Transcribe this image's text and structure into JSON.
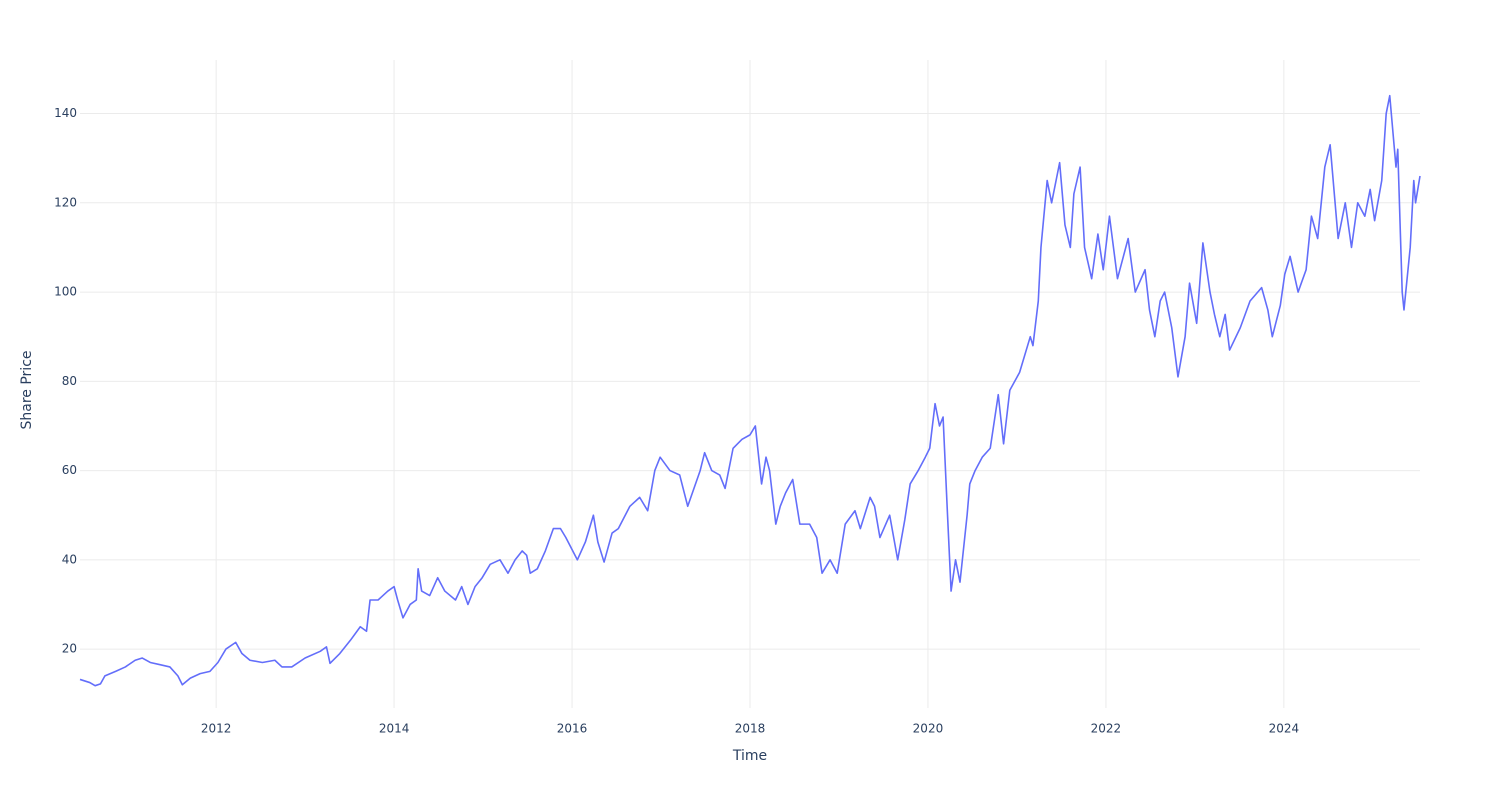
{
  "chart_data": {
    "type": "line",
    "x_label": "Time",
    "y_label": "Share Price",
    "color": "#636efa",
    "grid": true,
    "xlim": [
      2010.47,
      2025.53
    ],
    "xticks": [
      2012,
      2014,
      2016,
      2018,
      2020,
      2022,
      2024
    ],
    "ylim": [
      6.8,
      152
    ],
    "yticks": [
      20,
      40,
      60,
      80,
      100,
      120,
      140
    ],
    "x": [
      2010.47,
      2010.58,
      2010.64,
      2010.7,
      2010.75,
      2010.87,
      2010.98,
      2011.09,
      2011.17,
      2011.26,
      2011.37,
      2011.48,
      2011.57,
      2011.62,
      2011.71,
      2011.82,
      2011.93,
      2012.02,
      2012.11,
      2012.22,
      2012.29,
      2012.38,
      2012.52,
      2012.66,
      2012.74,
      2012.85,
      2013.0,
      2013.17,
      2013.24,
      2013.28,
      2013.39,
      2013.51,
      2013.62,
      2013.69,
      2013.73,
      2013.82,
      2013.93,
      2014.0,
      2014.04,
      2014.1,
      2014.18,
      2014.25,
      2014.27,
      2014.31,
      2014.4,
      2014.49,
      2014.57,
      2014.69,
      2014.76,
      2014.83,
      2014.91,
      2014.99,
      2015.08,
      2015.19,
      2015.28,
      2015.36,
      2015.44,
      2015.49,
      2015.53,
      2015.61,
      2015.7,
      2015.79,
      2015.87,
      2015.93,
      2016.06,
      2016.15,
      2016.24,
      2016.29,
      2016.36,
      2016.45,
      2016.52,
      2016.65,
      2016.76,
      2016.85,
      2016.93,
      2016.99,
      2017.1,
      2017.21,
      2017.3,
      2017.44,
      2017.49,
      2017.57,
      2017.66,
      2017.72,
      2017.81,
      2017.91,
      2018.0,
      2018.06,
      2018.13,
      2018.18,
      2018.22,
      2018.29,
      2018.34,
      2018.4,
      2018.48,
      2018.56,
      2018.67,
      2018.75,
      2018.81,
      2018.9,
      2018.98,
      2019.07,
      2019.18,
      2019.24,
      2019.35,
      2019.4,
      2019.46,
      2019.57,
      2019.66,
      2019.74,
      2019.8,
      2019.89,
      2019.97,
      2020.02,
      2020.08,
      2020.13,
      2020.17,
      2020.22,
      2020.26,
      2020.31,
      2020.36,
      2020.44,
      2020.47,
      2020.53,
      2020.61,
      2020.7,
      2020.79,
      2020.85,
      2020.92,
      2021.03,
      2021.15,
      2021.18,
      2021.24,
      2021.27,
      2021.34,
      2021.39,
      2021.48,
      2021.54,
      2021.6,
      2021.64,
      2021.71,
      2021.76,
      2021.84,
      2021.91,
      2021.97,
      2022.04,
      2022.13,
      2022.25,
      2022.33,
      2022.44,
      2022.49,
      2022.55,
      2022.61,
      2022.66,
      2022.74,
      2022.81,
      2022.89,
      2022.94,
      2023.02,
      2023.09,
      2023.17,
      2023.22,
      2023.28,
      2023.34,
      2023.39,
      2023.51,
      2023.62,
      2023.75,
      2023.82,
      2023.87,
      2023.96,
      2024.01,
      2024.07,
      2024.16,
      2024.25,
      2024.31,
      2024.38,
      2024.46,
      2024.52,
      2024.61,
      2024.69,
      2024.76,
      2024.83,
      2024.91,
      2024.97,
      2025.02,
      2025.1,
      2025.15,
      2025.19,
      2025.26,
      2025.28,
      2025.33,
      2025.35,
      2025.42,
      2025.46,
      2025.48,
      2025.53
    ],
    "values": [
      13.2,
      12.5,
      11.8,
      12.2,
      14,
      15,
      16,
      17.5,
      18,
      17,
      16.5,
      16,
      14,
      12,
      13.5,
      14.5,
      15,
      17,
      20,
      21.5,
      19,
      17.5,
      17,
      17.5,
      16,
      16,
      18,
      19.5,
      20.5,
      16.8,
      19,
      22,
      25,
      24,
      31,
      31,
      33,
      34,
      31,
      27,
      30,
      31,
      38,
      33,
      32,
      36,
      33,
      31,
      34,
      30,
      34,
      36,
      39,
      40,
      37,
      40,
      42,
      41,
      37,
      38,
      42,
      47,
      47,
      45,
      40,
      44,
      50,
      44,
      39.5,
      46,
      47,
      52,
      54,
      51,
      60,
      63,
      60,
      59,
      52,
      60,
      64,
      60,
      59,
      56,
      65,
      67,
      68,
      70,
      57,
      63,
      60,
      48,
      52,
      55,
      58,
      48,
      48,
      45,
      37,
      40,
      37,
      48,
      51,
      47,
      54,
      52,
      45,
      50,
      40,
      49,
      57,
      60,
      63,
      65,
      75,
      70,
      72,
      50,
      33,
      40,
      35,
      50,
      57,
      60,
      63,
      65,
      77,
      66,
      78,
      82,
      90,
      88,
      98,
      110,
      125,
      120,
      129,
      115,
      110,
      122,
      128,
      110,
      103,
      113,
      105,
      117,
      103,
      112,
      100,
      105,
      96,
      90,
      98,
      100,
      92,
      81,
      90,
      102,
      93,
      111,
      100,
      95,
      90,
      95,
      87,
      92,
      98,
      101,
      96,
      90,
      97,
      104,
      108,
      100,
      105,
      117,
      112,
      128,
      133,
      112,
      120,
      110,
      120,
      117,
      123,
      116,
      125,
      140,
      144,
      128,
      132,
      100,
      96,
      110,
      125,
      120,
      126
    ]
  }
}
